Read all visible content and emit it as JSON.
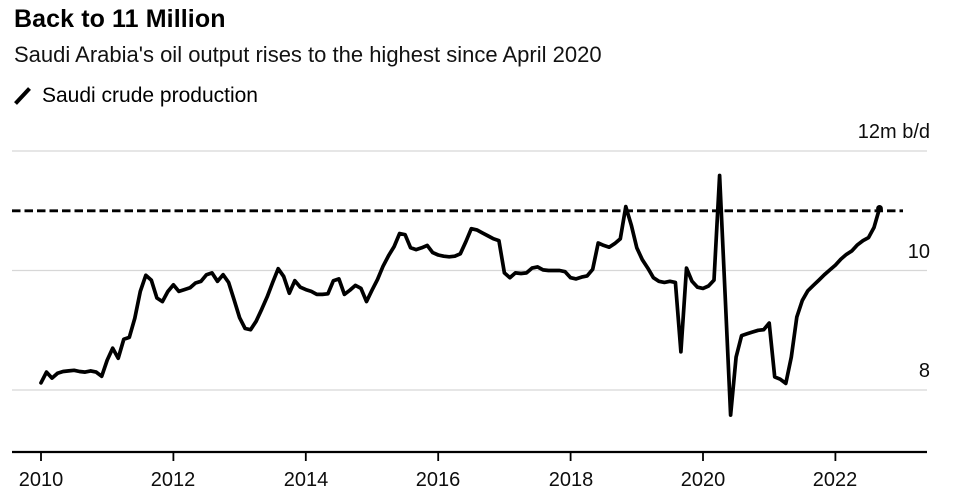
{
  "header": {
    "title": "Back to 11 Million",
    "subtitle": "Saudi Arabia's oil output rises to the highest since April 2020"
  },
  "legend": {
    "label": "Saudi crude production"
  },
  "colors": {
    "line": "#000000",
    "grid": "#d7d7d7",
    "axis": "#000000",
    "reference": "#000000",
    "text": "#0d0d0d"
  },
  "chart_data": {
    "type": "line",
    "title": "Back to 11 Million",
    "subtitle": "Saudi Arabia's oil output rises to the highest since April 2020",
    "xlabel": "",
    "ylabel": "m b/d",
    "unit_label": "12m b/d",
    "grid": true,
    "legend_position": "top-left",
    "y_axis": {
      "side": "right",
      "ylim": [
        7,
        12.4
      ],
      "gridline_values": [
        12,
        10,
        8
      ],
      "tick_labels": [
        "12m b/d",
        "10",
        "8"
      ]
    },
    "x_axis": {
      "start": 2010,
      "end": 2022.67,
      "tick_years": [
        2010,
        2012,
        2014,
        2016,
        2018,
        2020,
        2022
      ],
      "tick_labels": [
        "2010",
        "2012",
        "2014",
        "2016",
        "2018",
        "2020",
        "2022"
      ]
    },
    "reference_line": {
      "value": 11,
      "style": "dashed"
    },
    "series": [
      {
        "name": "Saudi crude production",
        "start": "2010-01",
        "frequency": "monthly",
        "unit": "m b/d",
        "end_marker": true,
        "values": [
          8.12,
          8.3,
          8.2,
          8.28,
          8.31,
          8.32,
          8.33,
          8.31,
          8.3,
          8.32,
          8.3,
          8.23,
          8.5,
          8.7,
          8.53,
          8.85,
          8.88,
          9.2,
          9.65,
          9.92,
          9.84,
          9.54,
          9.48,
          9.65,
          9.76,
          9.65,
          9.68,
          9.71,
          9.79,
          9.82,
          9.93,
          9.96,
          9.82,
          9.93,
          9.8,
          9.51,
          9.21,
          9.03,
          9.01,
          9.15,
          9.35,
          9.56,
          9.8,
          10.03,
          9.9,
          9.62,
          9.83,
          9.72,
          9.68,
          9.65,
          9.6,
          9.6,
          9.61,
          9.83,
          9.86,
          9.6,
          9.67,
          9.75,
          9.7,
          9.48,
          9.67,
          9.85,
          10.07,
          10.25,
          10.4,
          10.62,
          10.6,
          10.38,
          10.35,
          10.38,
          10.42,
          10.3,
          10.26,
          10.24,
          10.23,
          10.24,
          10.28,
          10.48,
          10.7,
          10.68,
          10.63,
          10.58,
          10.53,
          10.5,
          9.96,
          9.88,
          9.96,
          9.95,
          9.96,
          10.04,
          10.06,
          10.01,
          10.0,
          10.0,
          10.0,
          9.98,
          9.88,
          9.86,
          9.89,
          9.91,
          10.02,
          10.46,
          10.42,
          10.39,
          10.45,
          10.53,
          11.07,
          10.76,
          10.38,
          10.18,
          10.04,
          9.88,
          9.82,
          9.8,
          9.82,
          9.8,
          8.64,
          10.04,
          9.82,
          9.72,
          9.7,
          9.74,
          9.84,
          11.59,
          9.6,
          7.58,
          8.55,
          8.91,
          8.94,
          8.97,
          9.0,
          9.01,
          9.12,
          8.22,
          8.18,
          8.11,
          8.55,
          9.22,
          9.5,
          9.66,
          9.75,
          9.84,
          9.93,
          10.01,
          10.09,
          10.19,
          10.27,
          10.33,
          10.43,
          10.5,
          10.55,
          10.72,
          11.04
        ]
      }
    ]
  }
}
